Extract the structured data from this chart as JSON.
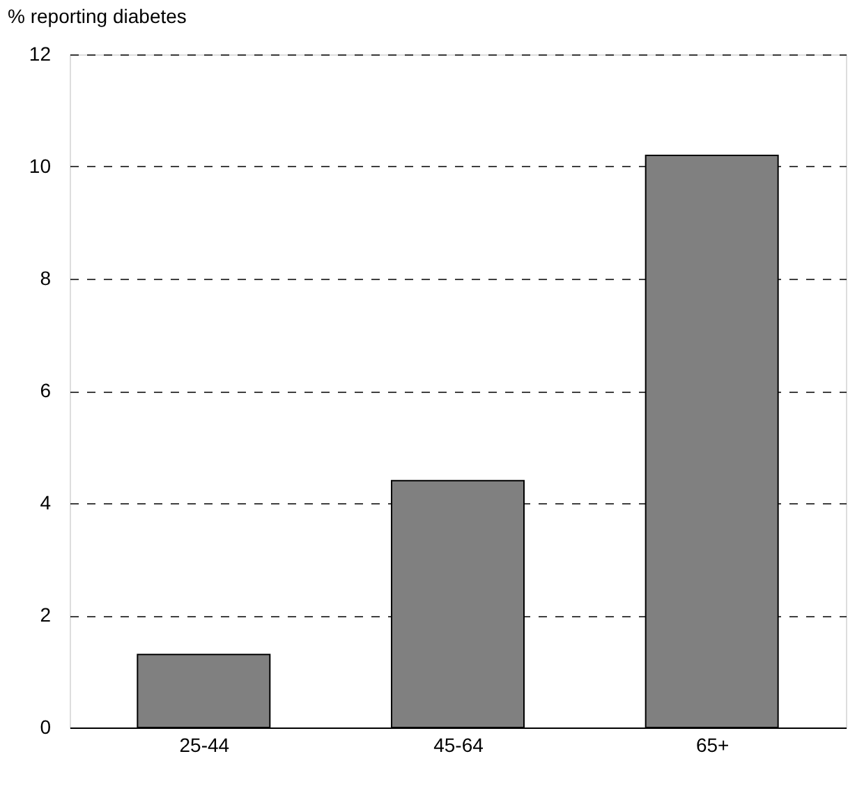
{
  "chart_data": {
    "type": "bar",
    "ylabel": "% reporting diabetes",
    "categories": [
      "25-44",
      "45-64",
      "65+"
    ],
    "values": [
      1.3,
      4.4,
      10.2
    ],
    "color": "#808080",
    "ylim": [
      0,
      12
    ],
    "yticks": [
      0,
      2,
      4,
      6,
      8,
      10,
      12
    ],
    "grid": "y"
  }
}
